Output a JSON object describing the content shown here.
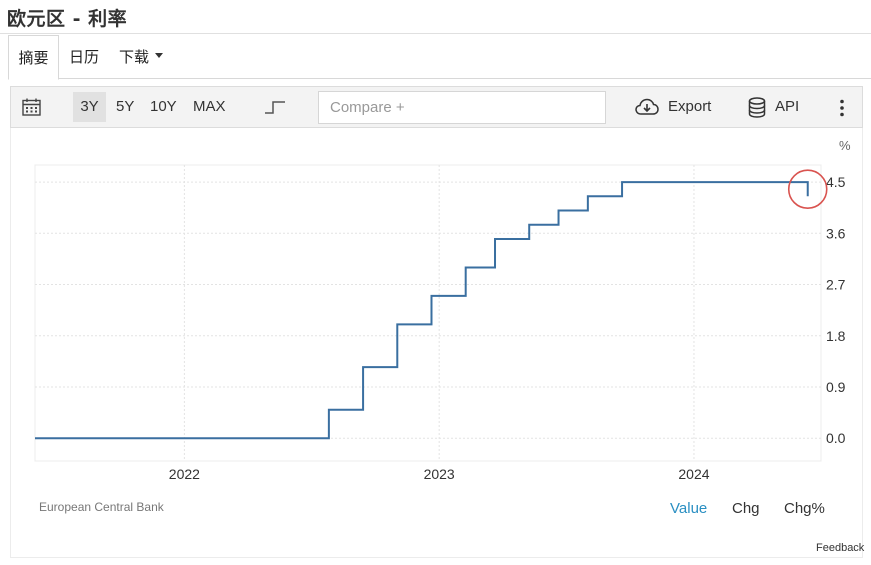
{
  "header": {
    "title": "欧元区 - 利率"
  },
  "tabs": [
    {
      "label": "摘要",
      "active": true
    },
    {
      "label": "日历",
      "active": false
    },
    {
      "label": "下载",
      "active": false,
      "has_dropdown": true
    }
  ],
  "toolbar": {
    "calendar_icon": "calendar-icon",
    "ranges": [
      {
        "label": "3Y",
        "active": true
      },
      {
        "label": "5Y",
        "active": false
      },
      {
        "label": "10Y",
        "active": false
      },
      {
        "label": "MAX",
        "active": false
      }
    ],
    "chart_style_icon": "step-line-icon",
    "compare_placeholder": "Compare +",
    "export_label": "Export",
    "export_icon": "cloud-download-icon",
    "api_label": "API",
    "api_icon": "database-icon",
    "more_icon": "vertical-ellipsis-icon"
  },
  "chart_data": {
    "type": "line",
    "step": true,
    "unit_label": "%",
    "x_tick_labels": [
      "2022",
      "2023",
      "2024"
    ],
    "y_tick_labels": [
      "4.5",
      "3.6",
      "2.7",
      "1.8",
      "0.9",
      "0.0"
    ],
    "ylim": [
      -0.4,
      4.8
    ],
    "grid": true,
    "line_color": "#3a6fa0",
    "highlight_color": "#d9534f",
    "series": [
      {
        "x": [
          "2021-06",
          "2022-07-27",
          "2022-09-14",
          "2022-11-02",
          "2022-12-21",
          "2023-02-08",
          "2023-03-22",
          "2023-05-10",
          "2023-06-21",
          "2023-08-02",
          "2023-09-20",
          "2024-06-12"
        ],
        "y": [
          0.0,
          0.5,
          1.25,
          2.0,
          2.5,
          3.0,
          3.5,
          3.75,
          4.0,
          4.25,
          4.5,
          4.25
        ]
      }
    ],
    "last_point_highlighted": true
  },
  "footer": {
    "source": "European Central Bank",
    "value_tabs": [
      {
        "label": "Value",
        "active": true
      },
      {
        "label": "Chg",
        "active": false
      },
      {
        "label": "Chg%",
        "active": false
      }
    ],
    "feedback": "Feedback"
  }
}
